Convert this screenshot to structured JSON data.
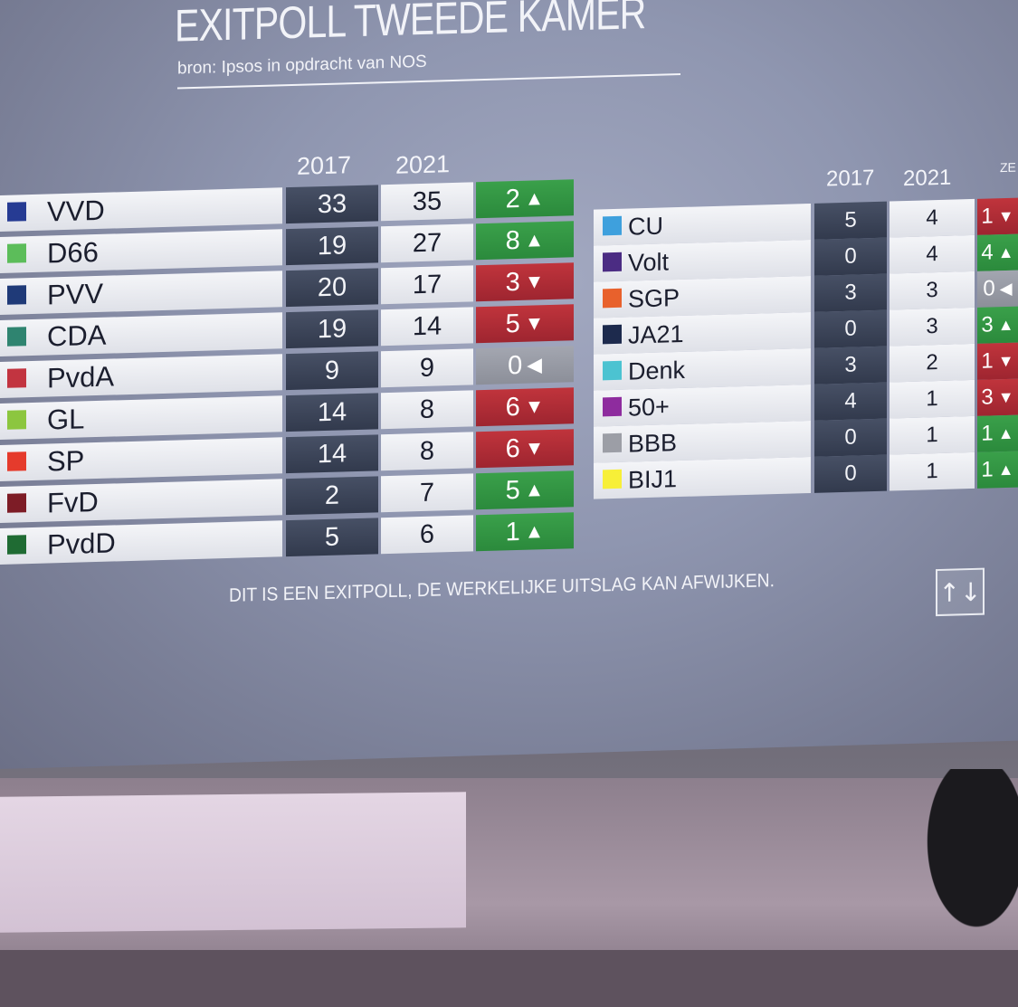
{
  "title": "EXITPOLL TWEEDE KAMER",
  "subtitle": "bron: Ipsos in opdracht van NOS",
  "left": {
    "col_2017": "2017",
    "col_2021": "2021",
    "rows": [
      {
        "party": "VVD",
        "color": "#263b93",
        "s2017": "33",
        "s2021": "35",
        "delta": "2",
        "dir": "up"
      },
      {
        "party": "D66",
        "color": "#5cbd5a",
        "s2017": "19",
        "s2021": "27",
        "delta": "8",
        "dir": "up"
      },
      {
        "party": "PVV",
        "color": "#1f3a78",
        "s2017": "20",
        "s2021": "17",
        "delta": "3",
        "dir": "down"
      },
      {
        "party": "CDA",
        "color": "#2f8470",
        "s2017": "19",
        "s2021": "14",
        "delta": "5",
        "dir": "down"
      },
      {
        "party": "PvdA",
        "color": "#c23440",
        "s2017": "9",
        "s2021": "9",
        "delta": "0",
        "dir": "same"
      },
      {
        "party": "GL",
        "color": "#8cc63f",
        "s2017": "14",
        "s2021": "8",
        "delta": "6",
        "dir": "down"
      },
      {
        "party": "SP",
        "color": "#e53b2c",
        "s2017": "14",
        "s2021": "8",
        "delta": "6",
        "dir": "down"
      },
      {
        "party": "FvD",
        "color": "#7d1c26",
        "s2017": "2",
        "s2021": "7",
        "delta": "5",
        "dir": "up"
      },
      {
        "party": "PvdD",
        "color": "#1f6b33",
        "s2017": "5",
        "s2021": "6",
        "delta": "1",
        "dir": "up"
      }
    ]
  },
  "right": {
    "col_2017": "2017",
    "col_2021": "2021",
    "col_delta": "ZE",
    "rows": [
      {
        "party": "CU",
        "color": "#3ea0dd",
        "s2017": "5",
        "s2021": "4",
        "delta": "1",
        "dir": "down"
      },
      {
        "party": "Volt",
        "color": "#4b2c83",
        "s2017": "0",
        "s2021": "4",
        "delta": "4",
        "dir": "up"
      },
      {
        "party": "SGP",
        "color": "#e8612c",
        "s2017": "3",
        "s2021": "3",
        "delta": "0",
        "dir": "same"
      },
      {
        "party": "JA21",
        "color": "#1d2a4d",
        "s2017": "0",
        "s2021": "3",
        "delta": "3",
        "dir": "up"
      },
      {
        "party": "Denk",
        "color": "#4cc3d1",
        "s2017": "3",
        "s2021": "2",
        "delta": "1",
        "dir": "down"
      },
      {
        "party": "50+",
        "color": "#8e2c9e",
        "s2017": "4",
        "s2021": "1",
        "delta": "3",
        "dir": "down"
      },
      {
        "party": "BBB",
        "color": "#9c9ea6",
        "s2017": "0",
        "s2021": "1",
        "delta": "1",
        "dir": "up"
      },
      {
        "party": "BIJ1",
        "color": "#f7ef38",
        "s2017": "0",
        "s2021": "1",
        "delta": "1",
        "dir": "up"
      }
    ]
  },
  "arrows": {
    "up": "▲",
    "down": "▼",
    "same": "◀"
  },
  "footer": "DIT IS EEN EXITPOLL, DE WERKELIJKE UITSLAG KAN AFWIJKEN.",
  "sort_icon": "↑↓"
}
